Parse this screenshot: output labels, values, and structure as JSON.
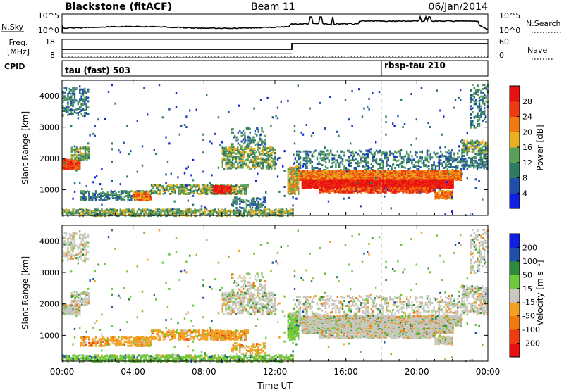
{
  "header": {
    "station": "Blackstone (fitACF)",
    "beam": "Beam 11",
    "date": "06/Jan/2014"
  },
  "top_panels": {
    "nsky_label": "N.Sky",
    "nsky_ticks": [
      "10^5",
      "10^0"
    ],
    "nsearch_label": "N.Search",
    "nsearch_ticks": [
      "10^5",
      "10^0"
    ],
    "freq_label": "Freq.",
    "freq_unit": "[MHz]",
    "freq_ticks": [
      "18",
      "8"
    ],
    "nave_label": "Nave",
    "nave_ticks": [
      "60",
      "0"
    ],
    "cpid_label": "CPID",
    "cpid_modes": [
      "tau (fast) 503",
      "rbsp-tau 210"
    ]
  },
  "colors": {
    "power": [
      "#1020e0",
      "#1f4fa8",
      "#2f7a62",
      "#5aa05a",
      "#e6b020",
      "#f07a10",
      "#ee3a10",
      "#e81010"
    ],
    "velocity": [
      "#e81010",
      "#f03a10",
      "#f07a10",
      "#f4a020",
      "#c8c8c0",
      "#6ec83a",
      "#2f8a3a",
      "#1f4fa8",
      "#1020e0"
    ]
  },
  "chart_data": [
    {
      "type": "heatmap",
      "name": "power",
      "ylabel": "Slant Range [km]",
      "yticks": [
        "1000",
        "2000",
        "3000",
        "4000"
      ],
      "ylim": [
        180,
        4500
      ],
      "xlim_hours": [
        0,
        24
      ],
      "colorbar_label": "Power [dB]",
      "colorbar_ticks": [
        "4",
        "8",
        "12",
        "16",
        "20",
        "24",
        "28"
      ],
      "colorbar_range": [
        0,
        32
      ]
    },
    {
      "type": "heatmap",
      "name": "velocity",
      "ylabel": "Slant Range [km]",
      "yticks": [
        "1000",
        "2000",
        "3000",
        "4000"
      ],
      "ylim": [
        180,
        4500
      ],
      "xlim_hours": [
        0,
        24
      ],
      "colorbar_label": "Velocity [m s⁻¹]",
      "colorbar_ticks": [
        "-200",
        "-100",
        "-50",
        "-15",
        "15",
        "50",
        "100",
        "200"
      ]
    }
  ],
  "x_axis": {
    "ticks": [
      "00:00",
      "04:00",
      "08:00",
      "12:00",
      "16:00",
      "20:00",
      "00:00"
    ],
    "label": "Time UT"
  },
  "scatter_regions": [
    {
      "t0": 0.0,
      "t1": 1.0,
      "r0": 1700,
      "r1": 2000,
      "p": 0.75,
      "pw": 6,
      "v": 4
    },
    {
      "t0": 0.5,
      "t1": 1.5,
      "r0": 2000,
      "r1": 2400,
      "p": 0.45,
      "pw": 3,
      "v": 4
    },
    {
      "t0": 0.0,
      "t1": 1.5,
      "r0": 3400,
      "r1": 4300,
      "p": 0.25,
      "pw": 2,
      "v": 4
    },
    {
      "t0": 1.0,
      "t1": 5.0,
      "r0": 700,
      "r1": 1000,
      "p": 0.35,
      "pw": 2,
      "v": 3
    },
    {
      "t0": 4.0,
      "t1": 5.0,
      "r0": 700,
      "r1": 950,
      "p": 0.6,
      "pw": 5,
      "v": 3
    },
    {
      "t0": 5.0,
      "t1": 10.5,
      "r0": 900,
      "r1": 1200,
      "p": 0.45,
      "pw": 3,
      "v": 3
    },
    {
      "t0": 8.5,
      "t1": 9.5,
      "r0": 950,
      "r1": 1150,
      "p": 0.7,
      "pw": 7,
      "v": 3
    },
    {
      "t0": 9.5,
      "t1": 11.5,
      "r0": 450,
      "r1": 800,
      "p": 0.25,
      "pw": 2,
      "v": 3
    },
    {
      "t0": 0.0,
      "t1": 13.0,
      "r0": 200,
      "r1": 400,
      "p": 0.45,
      "pw": 3,
      "v": 5
    },
    {
      "t0": 9.0,
      "t1": 12.0,
      "r0": 1700,
      "r1": 2400,
      "p": 0.35,
      "pw": 3,
      "v": 4
    },
    {
      "t0": 9.5,
      "t1": 11.5,
      "r0": 2400,
      "r1": 3000,
      "p": 0.15,
      "pw": 2,
      "v": 4
    },
    {
      "t0": 12.7,
      "t1": 13.3,
      "r0": 900,
      "r1": 1800,
      "p": 0.5,
      "pw": 4,
      "v": 5
    },
    {
      "t0": 13.0,
      "t1": 22.5,
      "r0": 1600,
      "r1": 2300,
      "p": 0.18,
      "pw": 2,
      "v": 4
    },
    {
      "t0": 13.3,
      "t1": 22.5,
      "r0": 1350,
      "r1": 1650,
      "p": 0.9,
      "pw": 5,
      "v": 4
    },
    {
      "t0": 13.5,
      "t1": 22.0,
      "r0": 1100,
      "r1": 1350,
      "p": 0.92,
      "pw": 7,
      "v": 4
    },
    {
      "t0": 14.5,
      "t1": 21.0,
      "r0": 950,
      "r1": 1100,
      "p": 0.6,
      "pw": 6,
      "v": 4
    },
    {
      "t0": 21.0,
      "t1": 22.0,
      "r0": 750,
      "r1": 1000,
      "p": 0.6,
      "pw": 5,
      "v": 4
    },
    {
      "t0": 22.5,
      "t1": 24.0,
      "r0": 2200,
      "r1": 2600,
      "p": 0.4,
      "pw": 3,
      "v": 4
    },
    {
      "t0": 22.5,
      "t1": 24.0,
      "r0": 1700,
      "r1": 2200,
      "p": 0.3,
      "pw": 2,
      "v": 4
    },
    {
      "t0": 23.0,
      "t1": 24.0,
      "r0": 3000,
      "r1": 4400,
      "p": 0.15,
      "pw": 2,
      "v": 4
    },
    {
      "t0": 0.0,
      "t1": 24.0,
      "r0": 200,
      "r1": 4400,
      "p": 0.006,
      "pw": 1,
      "v": 5
    }
  ]
}
